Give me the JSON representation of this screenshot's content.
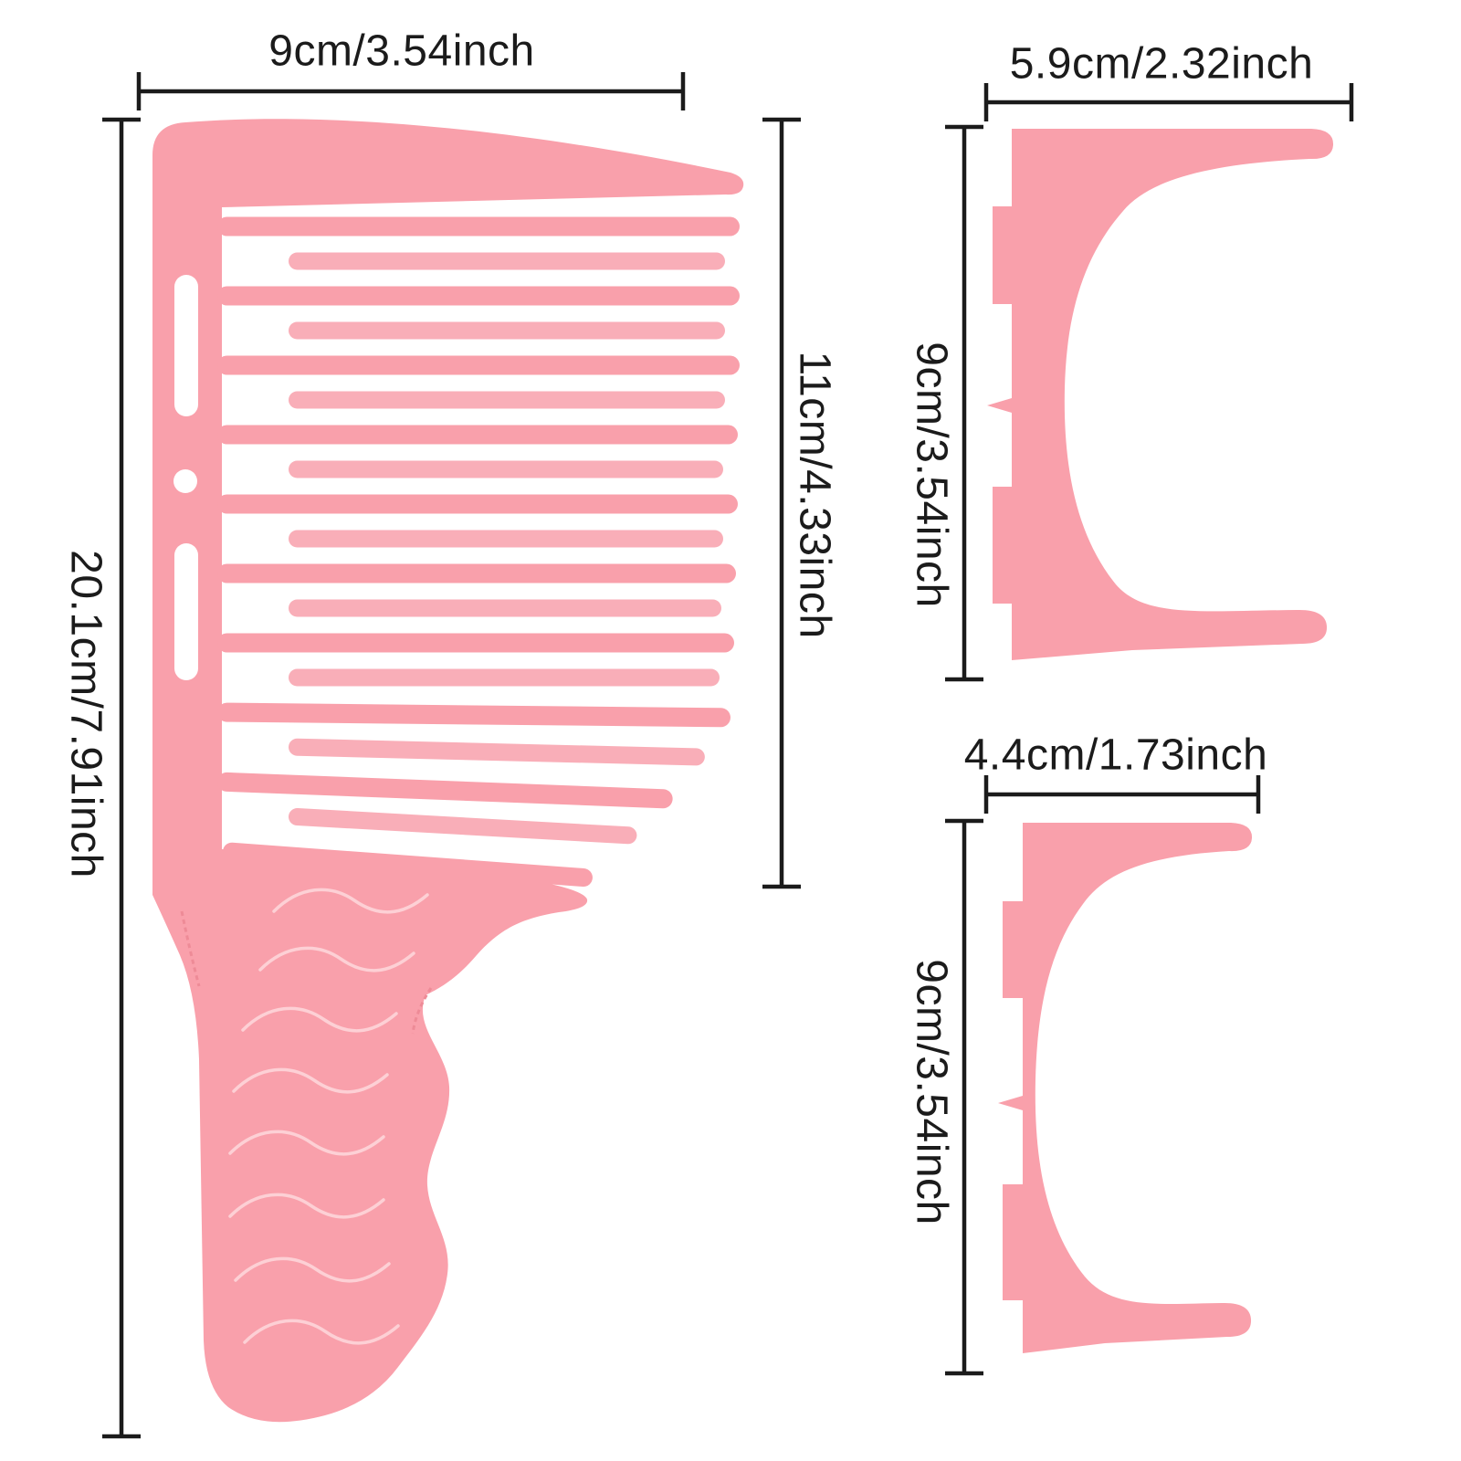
{
  "diagram": {
    "comb": {
      "width_label": "9cm/3.54inch",
      "total_length_label": "20.1cm/7.91inch",
      "teeth_section_label": "11cm/4.33inch"
    },
    "clip_large": {
      "width_label": "5.9cm/2.32inch",
      "height_label": "9cm/3.54inch"
    },
    "clip_small": {
      "width_label": "4.4cm/1.73inch",
      "height_label": "9cm/3.54inch"
    }
  },
  "colors": {
    "product_pink": "#f9a0ab",
    "product_pink_soft": "#f9aeb8",
    "engraving_pink": "#fdd0d5",
    "dimension_line": "#1b1b1b",
    "background": "#ffffff"
  }
}
